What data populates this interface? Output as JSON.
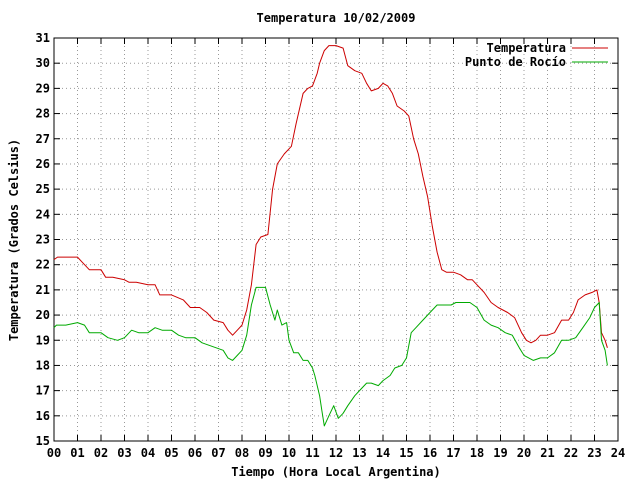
{
  "chart_data": {
    "type": "line",
    "title": "Temperatura 10/02/2009",
    "xlabel": "Tiempo (Hora Local Argentina)",
    "ylabel": "Temperatura (Grados Celsius)",
    "xlim": [
      0,
      24
    ],
    "ylim": [
      15,
      31
    ],
    "x_ticks": [
      "00",
      "01",
      "02",
      "03",
      "04",
      "05",
      "06",
      "07",
      "08",
      "09",
      "10",
      "11",
      "12",
      "13",
      "14",
      "15",
      "16",
      "17",
      "18",
      "19",
      "20",
      "21",
      "22",
      "23",
      "24"
    ],
    "y_ticks": [
      "15",
      "16",
      "17",
      "18",
      "19",
      "20",
      "21",
      "22",
      "23",
      "24",
      "25",
      "26",
      "27",
      "28",
      "29",
      "30",
      "31"
    ],
    "grid": true,
    "legend_position": "top-right",
    "series": [
      {
        "name": "Temperatura",
        "color": "#cc0000",
        "points": [
          [
            0.0,
            22.2
          ],
          [
            0.15,
            22.3
          ],
          [
            0.5,
            22.3
          ],
          [
            1.0,
            22.3
          ],
          [
            1.2,
            22.1
          ],
          [
            1.5,
            21.8
          ],
          [
            2.0,
            21.8
          ],
          [
            2.2,
            21.5
          ],
          [
            2.5,
            21.5
          ],
          [
            3.0,
            21.4
          ],
          [
            3.2,
            21.3
          ],
          [
            3.5,
            21.3
          ],
          [
            4.0,
            21.2
          ],
          [
            4.3,
            21.2
          ],
          [
            4.5,
            20.8
          ],
          [
            5.0,
            20.8
          ],
          [
            5.5,
            20.6
          ],
          [
            5.8,
            20.3
          ],
          [
            6.2,
            20.3
          ],
          [
            6.5,
            20.1
          ],
          [
            6.8,
            19.8
          ],
          [
            7.2,
            19.7
          ],
          [
            7.4,
            19.4
          ],
          [
            7.6,
            19.2
          ],
          [
            7.8,
            19.4
          ],
          [
            8.0,
            19.6
          ],
          [
            8.2,
            20.2
          ],
          [
            8.4,
            21.2
          ],
          [
            8.6,
            22.8
          ],
          [
            8.8,
            23.1
          ],
          [
            9.1,
            23.2
          ],
          [
            9.3,
            25.0
          ],
          [
            9.5,
            26.0
          ],
          [
            9.8,
            26.4
          ],
          [
            10.1,
            26.7
          ],
          [
            10.3,
            27.6
          ],
          [
            10.6,
            28.8
          ],
          [
            10.8,
            29.0
          ],
          [
            11.0,
            29.1
          ],
          [
            11.2,
            29.6
          ],
          [
            11.3,
            30.0
          ],
          [
            11.5,
            30.5
          ],
          [
            11.7,
            30.7
          ],
          [
            12.0,
            30.7
          ],
          [
            12.3,
            30.6
          ],
          [
            12.5,
            29.9
          ],
          [
            12.8,
            29.7
          ],
          [
            13.1,
            29.6
          ],
          [
            13.3,
            29.2
          ],
          [
            13.5,
            28.9
          ],
          [
            13.8,
            29.0
          ],
          [
            14.0,
            29.2
          ],
          [
            14.2,
            29.1
          ],
          [
            14.4,
            28.8
          ],
          [
            14.6,
            28.3
          ],
          [
            14.9,
            28.1
          ],
          [
            15.1,
            27.9
          ],
          [
            15.3,
            27.0
          ],
          [
            15.5,
            26.4
          ],
          [
            15.7,
            25.5
          ],
          [
            15.9,
            24.7
          ],
          [
            16.1,
            23.5
          ],
          [
            16.3,
            22.5
          ],
          [
            16.5,
            21.8
          ],
          [
            16.7,
            21.7
          ],
          [
            17.0,
            21.7
          ],
          [
            17.3,
            21.6
          ],
          [
            17.6,
            21.4
          ],
          [
            17.8,
            21.4
          ],
          [
            18.0,
            21.2
          ],
          [
            18.3,
            20.9
          ],
          [
            18.6,
            20.5
          ],
          [
            18.9,
            20.3
          ],
          [
            19.1,
            20.2
          ],
          [
            19.3,
            20.1
          ],
          [
            19.6,
            19.9
          ],
          [
            19.9,
            19.3
          ],
          [
            20.1,
            19.0
          ],
          [
            20.3,
            18.9
          ],
          [
            20.5,
            19.0
          ],
          [
            20.7,
            19.2
          ],
          [
            21.0,
            19.2
          ],
          [
            21.3,
            19.3
          ],
          [
            21.6,
            19.8
          ],
          [
            21.9,
            19.8
          ],
          [
            22.1,
            20.1
          ],
          [
            22.3,
            20.6
          ],
          [
            22.6,
            20.8
          ],
          [
            22.9,
            20.9
          ],
          [
            23.1,
            21.0
          ],
          [
            23.2,
            20.5
          ],
          [
            23.3,
            19.3
          ],
          [
            23.45,
            19.0
          ],
          [
            23.55,
            18.7
          ]
        ]
      },
      {
        "name": "Punto de Rocío",
        "color": "#00aa00",
        "points": [
          [
            0.0,
            19.5
          ],
          [
            0.1,
            19.6
          ],
          [
            0.5,
            19.6
          ],
          [
            1.0,
            19.7
          ],
          [
            1.3,
            19.6
          ],
          [
            1.5,
            19.3
          ],
          [
            2.0,
            19.3
          ],
          [
            2.3,
            19.1
          ],
          [
            2.7,
            19.0
          ],
          [
            3.0,
            19.1
          ],
          [
            3.3,
            19.4
          ],
          [
            3.6,
            19.3
          ],
          [
            4.0,
            19.3
          ],
          [
            4.3,
            19.5
          ],
          [
            4.6,
            19.4
          ],
          [
            5.0,
            19.4
          ],
          [
            5.3,
            19.2
          ],
          [
            5.6,
            19.1
          ],
          [
            6.0,
            19.1
          ],
          [
            6.3,
            18.9
          ],
          [
            6.6,
            18.8
          ],
          [
            6.9,
            18.7
          ],
          [
            7.2,
            18.6
          ],
          [
            7.4,
            18.3
          ],
          [
            7.6,
            18.2
          ],
          [
            7.8,
            18.4
          ],
          [
            8.0,
            18.6
          ],
          [
            8.2,
            19.2
          ],
          [
            8.4,
            20.4
          ],
          [
            8.6,
            21.1
          ],
          [
            8.8,
            21.1
          ],
          [
            9.0,
            21.1
          ],
          [
            9.2,
            20.4
          ],
          [
            9.4,
            19.8
          ],
          [
            9.5,
            20.2
          ],
          [
            9.7,
            19.6
          ],
          [
            9.9,
            19.7
          ],
          [
            10.0,
            19.0
          ],
          [
            10.2,
            18.5
          ],
          [
            10.4,
            18.5
          ],
          [
            10.6,
            18.2
          ],
          [
            10.8,
            18.2
          ],
          [
            11.0,
            17.9
          ],
          [
            11.1,
            17.6
          ],
          [
            11.3,
            16.8
          ],
          [
            11.4,
            16.2
          ],
          [
            11.5,
            15.6
          ],
          [
            11.7,
            16.0
          ],
          [
            11.9,
            16.4
          ],
          [
            12.1,
            15.9
          ],
          [
            12.3,
            16.1
          ],
          [
            12.5,
            16.4
          ],
          [
            12.8,
            16.8
          ],
          [
            13.0,
            17.0
          ],
          [
            13.3,
            17.3
          ],
          [
            13.5,
            17.3
          ],
          [
            13.8,
            17.2
          ],
          [
            14.0,
            17.4
          ],
          [
            14.3,
            17.6
          ],
          [
            14.5,
            17.9
          ],
          [
            14.8,
            18.0
          ],
          [
            15.0,
            18.3
          ],
          [
            15.2,
            19.3
          ],
          [
            15.4,
            19.5
          ],
          [
            15.7,
            19.8
          ],
          [
            16.0,
            20.1
          ],
          [
            16.3,
            20.4
          ],
          [
            16.6,
            20.4
          ],
          [
            16.9,
            20.4
          ],
          [
            17.1,
            20.5
          ],
          [
            17.4,
            20.5
          ],
          [
            17.7,
            20.5
          ],
          [
            18.0,
            20.3
          ],
          [
            18.3,
            19.8
          ],
          [
            18.6,
            19.6
          ],
          [
            18.9,
            19.5
          ],
          [
            19.2,
            19.3
          ],
          [
            19.5,
            19.2
          ],
          [
            19.8,
            18.7
          ],
          [
            20.0,
            18.4
          ],
          [
            20.2,
            18.3
          ],
          [
            20.4,
            18.2
          ],
          [
            20.7,
            18.3
          ],
          [
            21.0,
            18.3
          ],
          [
            21.3,
            18.5
          ],
          [
            21.6,
            19.0
          ],
          [
            21.9,
            19.0
          ],
          [
            22.2,
            19.1
          ],
          [
            22.5,
            19.5
          ],
          [
            22.8,
            19.9
          ],
          [
            23.0,
            20.3
          ],
          [
            23.1,
            20.4
          ],
          [
            23.2,
            20.5
          ],
          [
            23.3,
            19.0
          ],
          [
            23.45,
            18.6
          ],
          [
            23.55,
            18.0
          ]
        ]
      }
    ]
  }
}
